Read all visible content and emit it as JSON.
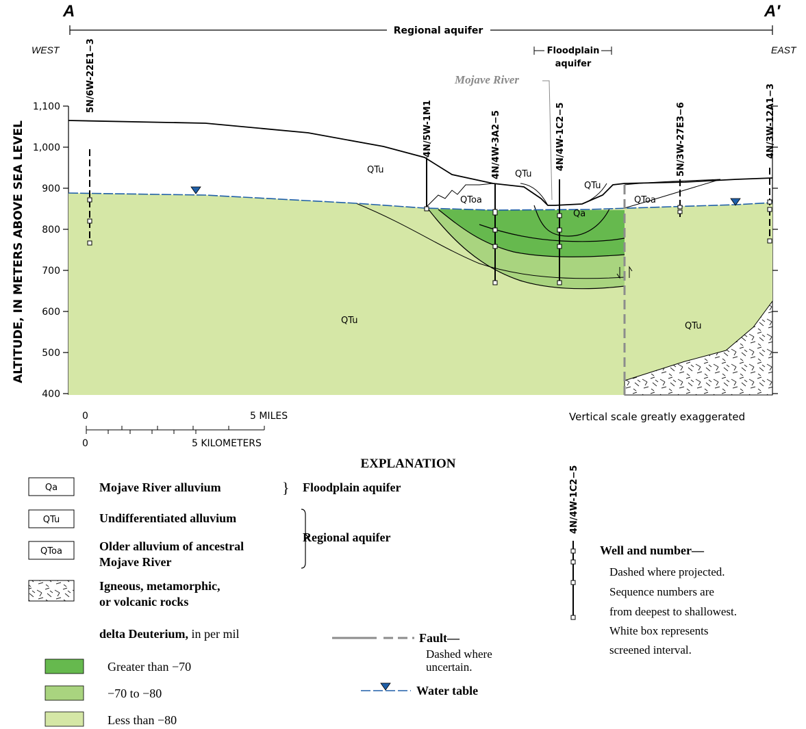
{
  "section": {
    "start_label": "A",
    "end_label": "A′",
    "regional_aquifer_label": "Regional aquifer",
    "west_label": "WEST",
    "east_label": "EAST",
    "floodplain_label_line1": "Floodplain",
    "floodplain_label_line2": "aquifer",
    "river_label": "Mojave River"
  },
  "y_axis": {
    "label": "ALTITUDE, IN METERS ABOVE SEA LEVEL",
    "ticks": [
      "1,100",
      "1,000",
      "900",
      "800",
      "700",
      "600",
      "500",
      "400"
    ]
  },
  "units": {
    "QTu": "QTu",
    "QToa": "QToa",
    "Qa": "Qa"
  },
  "wells": {
    "w1": "5N/6W-22E1−3",
    "w2": "4N/5W-1M1",
    "w3": "4N/4W-3A2−5",
    "w4": "4N/4W-1C2−5",
    "w5": "5N/3W-27E3−6",
    "w6": "4N/3W-12A1−3"
  },
  "scale": {
    "miles_zero": "0",
    "miles_label": "5 MILES",
    "km_zero": "0",
    "km_label": "5 KILOMETERS",
    "vertical_note": "Vertical scale greatly exaggerated"
  },
  "explanation": {
    "title": "EXPLANATION",
    "qa_box": "Qa",
    "qa_desc": "Mojave River alluvium",
    "floodplain_aquifer": "Floodplain aquifer",
    "qtu_box": "QTu",
    "qtu_desc": "Undifferentiated alluvium",
    "qtoa_box": "QToa",
    "qtoa_desc_line1": "Older alluvium of ancestral",
    "qtoa_desc_line2": "Mojave River",
    "regional_aquifer": "Regional aquifer",
    "igneous_line1": "Igneous, metamorphic,",
    "igneous_line2": "or volcanic rocks",
    "deuterium_bold": "delta Deuterium,",
    "deuterium_rest": " in per mil",
    "legend_gt70": "Greater than −70",
    "legend_70_80": "−70 to −80",
    "legend_lt80": "Less than −80",
    "fault_title": "Fault—",
    "fault_line1": "Dashed where",
    "fault_line2": "uncertain.",
    "water_table": "Water table",
    "well_example": "4N/4W-1C2−5",
    "well_title": "Well and number—",
    "well_line1": "Dashed where projected.",
    "well_line2": "Sequence numbers are",
    "well_line3": "from deepest to shallowest.",
    "well_line4": "White box represents",
    "well_line5": "screened interval."
  },
  "colors": {
    "gt70": "#66b94e",
    "d70_80": "#a9d47f",
    "lt80": "#d5e7a6",
    "water_table": "#1f5fa8",
    "fault": "#8c8c8c"
  }
}
